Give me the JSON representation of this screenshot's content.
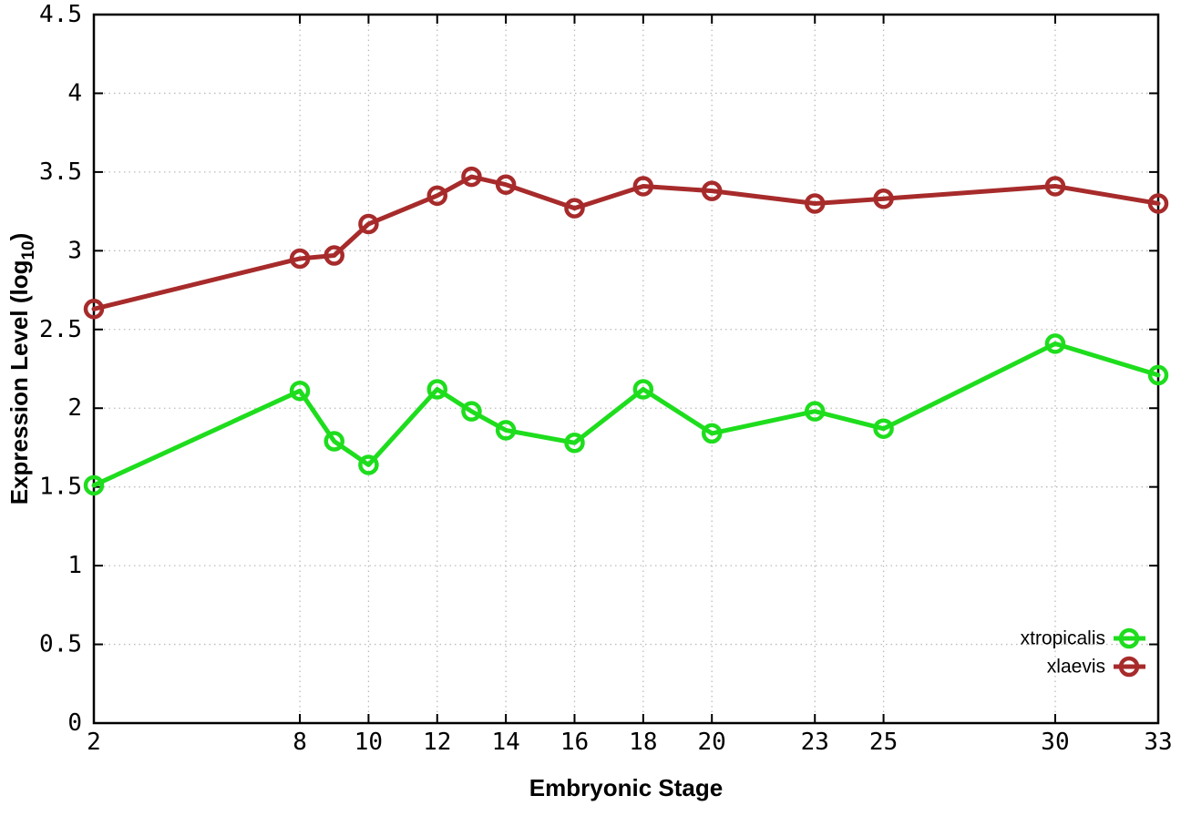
{
  "chart_data": {
    "type": "line",
    "title": "",
    "xlabel": "Embryonic Stage",
    "ylabel": {
      "pre": "Expression Level (log",
      "sub": "10",
      "post": ")"
    },
    "xlim": [
      2,
      33
    ],
    "ylim": [
      0,
      4.5
    ],
    "grid": true,
    "grid_style": "dotted",
    "legend_position": "inside-right-bottom",
    "x_tick_labels": [
      "2",
      "8",
      "10",
      "12",
      "14",
      "16",
      "18",
      "20",
      "23",
      "25",
      "30",
      "33"
    ],
    "y_tick_labels": [
      "0",
      "0.5",
      "1",
      "1.5",
      "2",
      "2.5",
      "3",
      "3.5",
      "4",
      "4.5"
    ],
    "x": [
      2,
      8,
      9,
      10,
      12,
      13,
      14,
      16,
      18,
      20,
      23,
      25,
      30,
      33
    ],
    "series": [
      {
        "name": "xtropicalis",
        "color": "#1ddd1d",
        "marker": "open-circle",
        "values": [
          1.51,
          2.11,
          1.79,
          1.64,
          2.12,
          1.98,
          1.86,
          1.78,
          2.12,
          1.84,
          1.98,
          1.87,
          2.41,
          2.21
        ]
      },
      {
        "name": "xlaevis",
        "color": "#a72b2b",
        "marker": "open-circle",
        "values": [
          2.63,
          2.95,
          2.97,
          3.17,
          3.35,
          3.47,
          3.42,
          3.27,
          3.41,
          3.38,
          3.3,
          3.33,
          3.41,
          3.3
        ]
      }
    ],
    "colors": {
      "axis": "#000000",
      "grid": "#bbbbbb",
      "background": "#ffffff"
    }
  }
}
